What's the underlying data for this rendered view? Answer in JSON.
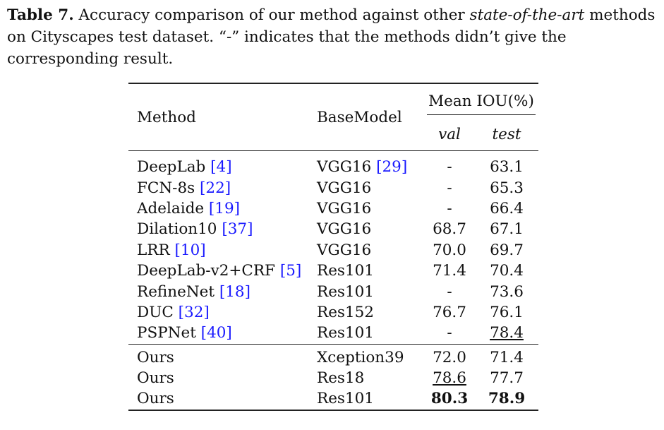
{
  "caption": {
    "label": "Table 7.",
    "text_before": " Accuracy comparison of our method against other ",
    "italic": "state-of-the-art",
    "text_after": " methods on Cityscapes test dataset. “-” indicates that the methods didn’t give the corresponding result."
  },
  "table": {
    "headers": {
      "method": "Method",
      "basemodel": "BaseModel",
      "mean_iou": "Mean IOU(%)",
      "val": "val",
      "test": "test"
    },
    "rows": [
      {
        "method": "DeepLab ",
        "cite_open": "[",
        "cite": "4",
        "cite_close": "]",
        "base": "VGG16 ",
        "base_cite": "[29]",
        "val": "-",
        "test": "63.1"
      },
      {
        "method": "FCN-8s ",
        "cite_open": "[",
        "cite": "22",
        "cite_close": "]",
        "base": "VGG16",
        "base_cite": "",
        "val": "-",
        "test": "65.3"
      },
      {
        "method": "Adelaide ",
        "cite_open": "[",
        "cite": "19",
        "cite_close": "]",
        "base": "VGG16",
        "base_cite": "",
        "val": "-",
        "test": "66.4"
      },
      {
        "method": "Dilation10 ",
        "cite_open": "[",
        "cite": "37",
        "cite_close": "]",
        "base": "VGG16",
        "base_cite": "",
        "val": "68.7",
        "test": "67.1"
      },
      {
        "method": "LRR ",
        "cite_open": "[",
        "cite": "10",
        "cite_close": "]",
        "base": "VGG16",
        "base_cite": "",
        "val": "70.0",
        "test": "69.7"
      },
      {
        "method": "DeepLab-v2+CRF ",
        "cite_open": "[",
        "cite": "5",
        "cite_close": "]",
        "base": "Res101",
        "base_cite": "",
        "val": "71.4",
        "test": "70.4"
      },
      {
        "method": "RefineNet ",
        "cite_open": "[",
        "cite": "18",
        "cite_close": "]",
        "base": "Res101",
        "base_cite": "",
        "val": "-",
        "test": "73.6"
      },
      {
        "method": "DUC ",
        "cite_open": "[",
        "cite": "32",
        "cite_close": "]",
        "base": "Res152",
        "base_cite": "",
        "val": "76.7",
        "test": "76.1"
      },
      {
        "method": "PSPNet ",
        "cite_open": "[",
        "cite": "40",
        "cite_close": "]",
        "base": "Res101",
        "base_cite": "",
        "val": "-",
        "test": "78.4"
      }
    ],
    "ours": [
      {
        "method": "Ours",
        "base": "Xception39",
        "val": "72.0",
        "test": "71.4"
      },
      {
        "method": "Ours",
        "base": "Res18",
        "val": "78.6",
        "test": "77.7"
      },
      {
        "method": "Ours",
        "base": "Res101",
        "val": "80.3",
        "test": "78.9"
      }
    ]
  }
}
